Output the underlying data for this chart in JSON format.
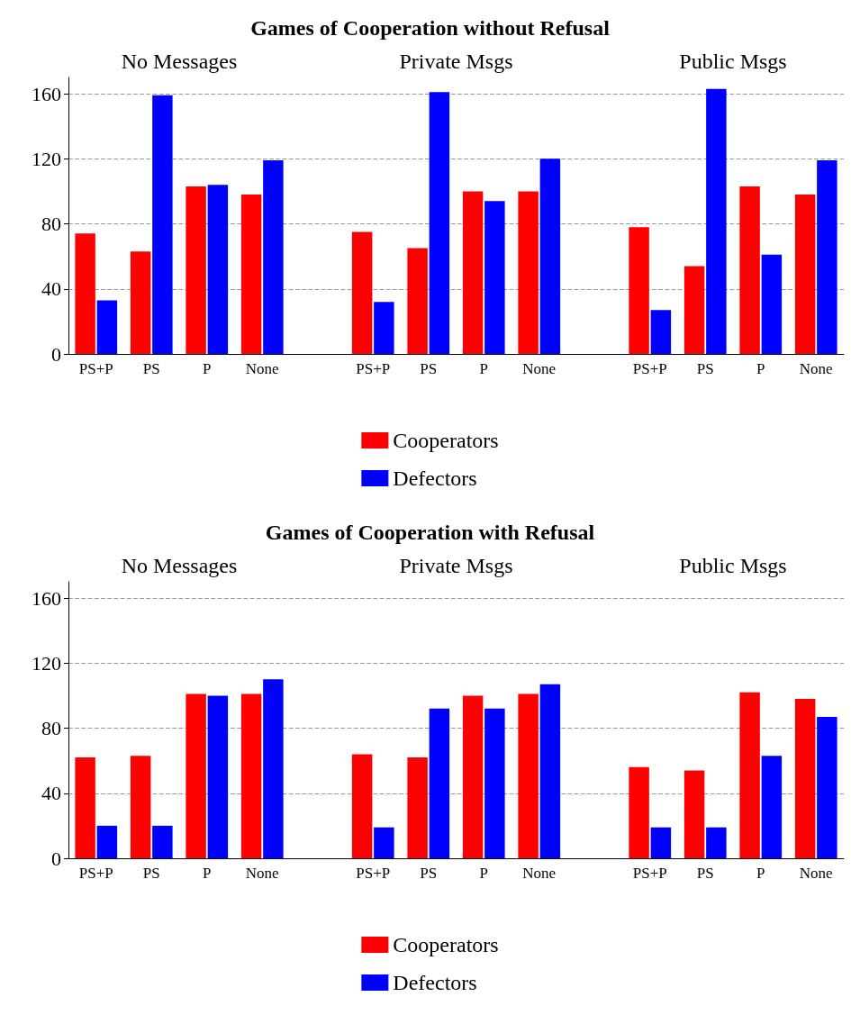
{
  "chart_data": [
    {
      "type": "bar",
      "title": "Games of Cooperation without Refusal",
      "annotations": [
        "No Messages",
        "Private Msgs",
        "Public Msgs"
      ],
      "categories": [
        "PS+P",
        "PS",
        "P",
        "None",
        null,
        "PS+P",
        "PS",
        "P",
        "None",
        null,
        "PS+P",
        "PS",
        "P",
        "None"
      ],
      "series": [
        {
          "name": "Cooperators",
          "color": "#ff0000",
          "values": [
            74,
            63,
            103,
            98,
            null,
            75,
            65,
            100,
            100,
            null,
            78,
            54,
            103,
            98
          ]
        },
        {
          "name": "Defectors",
          "color": "#0000ff",
          "values": [
            33,
            159,
            104,
            119,
            null,
            32,
            161,
            94,
            120,
            null,
            27,
            163,
            61,
            119
          ]
        }
      ],
      "ylim": [
        0,
        170
      ],
      "yticks": [
        0,
        40,
        80,
        120,
        160
      ],
      "grid": "y",
      "legend": "bottom"
    },
    {
      "type": "bar",
      "title": "Games of Cooperation with Refusal",
      "annotations": [
        "No Messages",
        "Private Msgs",
        "Public Msgs"
      ],
      "categories": [
        "PS+P",
        "PS",
        "P",
        "None",
        null,
        "PS+P",
        "PS",
        "P",
        "None",
        null,
        "PS+P",
        "PS",
        "P",
        "None"
      ],
      "series": [
        {
          "name": "Cooperators",
          "color": "#ff0000",
          "values": [
            62,
            63,
            101,
            101,
            null,
            64,
            62,
            100,
            101,
            null,
            56,
            54,
            102,
            98
          ]
        },
        {
          "name": "Defectors",
          "color": "#0000ff",
          "values": [
            20,
            20,
            100,
            110,
            null,
            19,
            92,
            92,
            107,
            null,
            19,
            19,
            63,
            87
          ]
        }
      ],
      "ylim": [
        0,
        170
      ],
      "yticks": [
        0,
        40,
        80,
        120,
        160
      ],
      "grid": "y",
      "legend": "bottom"
    }
  ]
}
